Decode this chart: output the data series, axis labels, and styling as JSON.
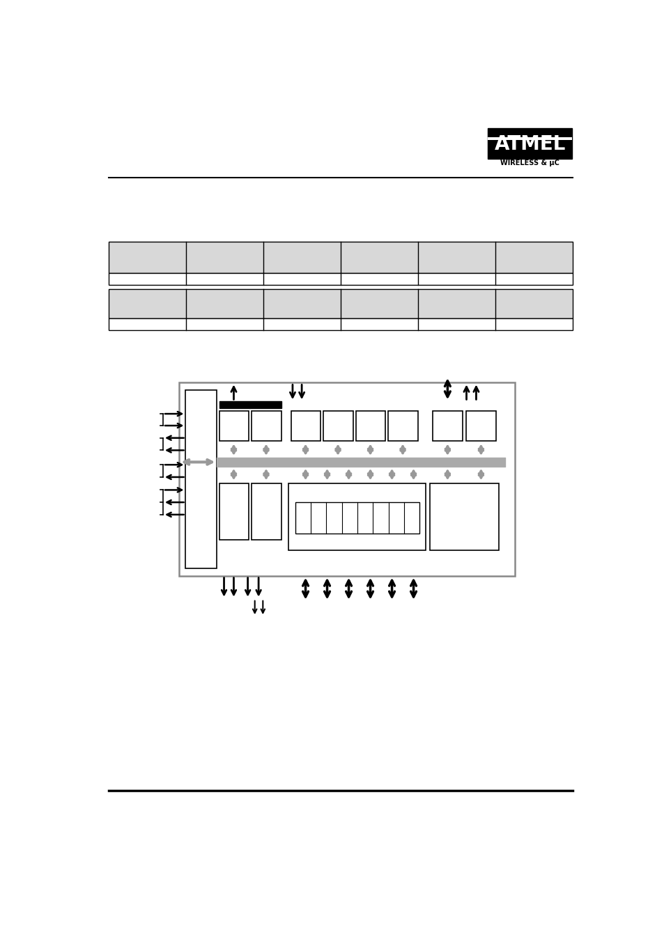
{
  "bg_color": "#ffffff",
  "line_color": "#000000",
  "gray_color": "#999999",
  "light_gray": "#d8d8d8",
  "bus_gray": "#aaaaaa"
}
